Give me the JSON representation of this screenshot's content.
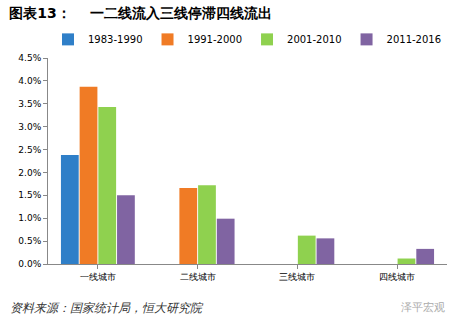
{
  "chart_data": {
    "type": "bar",
    "title": "图表13：    一二线流入三线停滞四线流出",
    "categories": [
      "一线城市",
      "二线城市",
      "三线城市",
      "四线城市"
    ],
    "series": [
      {
        "name": "1983-1990",
        "color": "#2f7fc8",
        "values": [
          2.38,
          null,
          null,
          null
        ]
      },
      {
        "name": "1991-2000",
        "color": "#f07b25",
        "values": [
          3.87,
          1.66,
          null,
          null
        ]
      },
      {
        "name": "2001-2010",
        "color": "#8fd14f",
        "values": [
          3.43,
          1.72,
          0.62,
          0.12
        ]
      },
      {
        "name": "2011-2016",
        "color": "#8064a2",
        "values": [
          1.5,
          0.99,
          0.56,
          0.33
        ]
      }
    ],
    "ylim": [
      0,
      4.5
    ],
    "yticks": [
      {
        "value": 0,
        "label": "0.0%"
      },
      {
        "value": 0.5,
        "label": "0.5%"
      },
      {
        "value": 1,
        "label": "1.0%"
      },
      {
        "value": 1.5,
        "label": "1.5%"
      },
      {
        "value": 2,
        "label": "2.0%"
      },
      {
        "value": 2.5,
        "label": "2.5%"
      },
      {
        "value": 3,
        "label": "3.0%"
      },
      {
        "value": 3.5,
        "label": "3.5%"
      },
      {
        "value": 4,
        "label": "4.0%"
      },
      {
        "value": 4.5,
        "label": "4.5%"
      }
    ],
    "grid": false,
    "legend": "top",
    "source": "资料来源：国家统计局，恒大研究院",
    "watermark": "泽平宏观"
  }
}
